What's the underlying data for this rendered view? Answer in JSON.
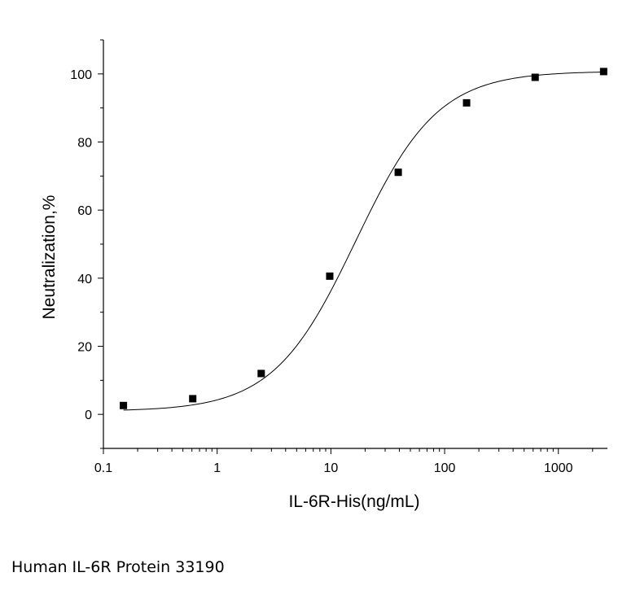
{
  "caption": "Human IL-6R Protein 33190",
  "chart_data": {
    "type": "scatter",
    "title": "",
    "xlabel": "IL-6R-His(ng/mL)",
    "ylabel": "Neutralization,%",
    "xscale": "log",
    "xlim": [
      0.1,
      2700
    ],
    "ylim": [
      -10,
      110
    ],
    "x_ticks": [
      0.1,
      1,
      10,
      100,
      1000
    ],
    "x_tick_labels": [
      "0.1",
      "1",
      "10",
      "100",
      "1000"
    ],
    "y_ticks": [
      0,
      20,
      40,
      60,
      80,
      100
    ],
    "y_tick_labels": [
      "0",
      "20",
      "40",
      "60",
      "80",
      "100"
    ],
    "grid": false,
    "legend": "none",
    "marker": "square",
    "series": [
      {
        "points": [
          {
            "x": 0.15,
            "y": 2.6
          },
          {
            "x": 0.61,
            "y": 4.6
          },
          {
            "x": 2.44,
            "y": 12.0
          },
          {
            "x": 9.77,
            "y": 40.6
          },
          {
            "x": 39.1,
            "y": 71.1
          },
          {
            "x": 156,
            "y": 91.5
          },
          {
            "x": 625,
            "y": 99.0
          },
          {
            "x": 2500,
            "y": 100.7
          }
        ]
      }
    ],
    "fit_curve": {
      "model": "4PL",
      "bottom": 0.9,
      "top": 100.8,
      "ec50": 16.5,
      "hill": 1.2
    },
    "colors": {
      "line": "#000000",
      "marker": "#000000"
    }
  }
}
